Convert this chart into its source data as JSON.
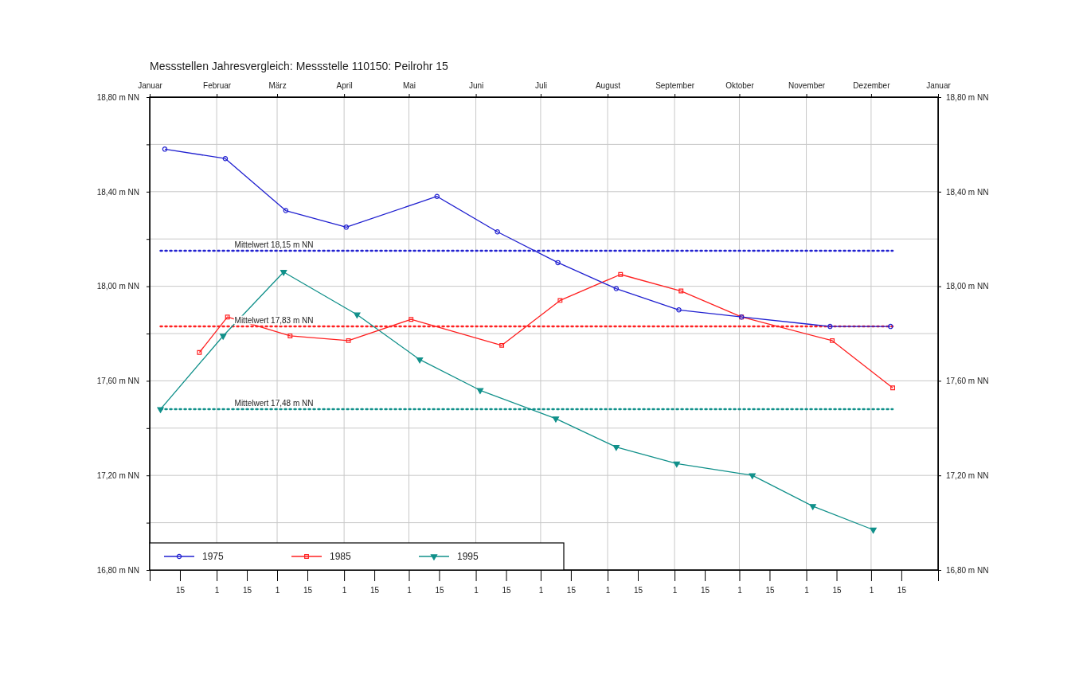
{
  "chart_data": {
    "type": "line",
    "title": "Messstellen Jahresvergleich:  Messstelle 110150: Peilrohr 15",
    "xlim": [
      "--01-01",
      "2002-01-01"
    ],
    "xticks": [
      {
        "value": "--01-01",
        "label": null
      },
      {
        "value": "--01-15",
        "label": "15"
      },
      {
        "value": "--02-01",
        "label": "1"
      },
      {
        "value": "--02-15",
        "label": "15"
      },
      {
        "value": "--03-01",
        "label": "1"
      },
      {
        "value": "--03-15",
        "label": "15"
      },
      {
        "value": "--04-01",
        "label": "1"
      },
      {
        "value": "--04-15",
        "label": "15"
      },
      {
        "value": "--05-01",
        "label": "1"
      },
      {
        "value": "--05-15",
        "label": "15"
      },
      {
        "value": "--06-01",
        "label": "1"
      },
      {
        "value": "--06-15",
        "label": "15"
      },
      {
        "value": "--07-01",
        "label": "1"
      },
      {
        "value": "--07-15",
        "label": "15"
      },
      {
        "value": "--08-01",
        "label": "1"
      },
      {
        "value": "--08-15",
        "label": "15"
      },
      {
        "value": "--09-01",
        "label": "1"
      },
      {
        "value": "--09-15",
        "label": "15"
      },
      {
        "value": "--10-01",
        "label": "1"
      },
      {
        "value": "--10-15",
        "label": "15"
      },
      {
        "value": "--11-01",
        "label": "1"
      },
      {
        "value": "--11-15",
        "label": "15"
      },
      {
        "value": "--12-01",
        "label": "1"
      },
      {
        "value": "--12-15",
        "label": "15"
      },
      {
        "value": "2002-01-01",
        "label": null
      }
    ],
    "x2lim": [
      "--01-01",
      "2002-01-01"
    ],
    "x2ticks": [
      {
        "value": "--01-01",
        "label": "Januar"
      },
      {
        "value": "--02-01",
        "label": "Februar"
      },
      {
        "value": "--03-01",
        "label": "März"
      },
      {
        "value": "--04-01",
        "label": "April"
      },
      {
        "value": "--05-01",
        "label": "Mai"
      },
      {
        "value": "--06-01",
        "label": "Juni"
      },
      {
        "value": "--07-01",
        "label": "Juli"
      },
      {
        "value": "--08-01",
        "label": "August"
      },
      {
        "value": "--09-01",
        "label": "September"
      },
      {
        "value": "--10-01",
        "label": "Oktober"
      },
      {
        "value": "--11-01",
        "label": "November"
      },
      {
        "value": "--12-01",
        "label": "Dezember"
      },
      {
        "value": "2002-01-01",
        "label": "Januar"
      }
    ],
    "ylim": [
      16.8,
      18.8
    ],
    "yticks": [
      {
        "value": 16.8,
        "label": "16,80 m NN"
      },
      {
        "value": 17.0,
        "label": null
      },
      {
        "value": 17.2,
        "label": "17,20 m NN"
      },
      {
        "value": 17.4,
        "label": null
      },
      {
        "value": 17.6,
        "label": "17,60 m NN"
      },
      {
        "value": 17.8,
        "label": null
      },
      {
        "value": 18.0,
        "label": "18,00 m NN"
      },
      {
        "value": 18.2,
        "label": null
      },
      {
        "value": 18.4,
        "label": "18,40 m NN"
      },
      {
        "value": 18.6,
        "label": null
      },
      {
        "value": 18.8,
        "label": "18,80 m NN"
      }
    ],
    "y2lim": [
      16.8,
      18.8
    ],
    "y2ticks": [
      {
        "value": 16.8,
        "label": "16,80 m NN"
      },
      {
        "value": 17.2,
        "label": "17,20 m NN"
      },
      {
        "value": 17.6,
        "label": "17,60 m NN"
      },
      {
        "value": 18.0,
        "label": "18,00 m NN"
      },
      {
        "value": 18.4,
        "label": "18,40 m NN"
      },
      {
        "value": 18.8,
        "label": "18,80 m NN"
      }
    ],
    "grid": true,
    "legend": "bottom left",
    "line_style": "solid",
    "series": [
      {
        "name": "1975",
        "color": "#2020d0",
        "marker": "circle",
        "x": [
          "--01-08",
          "--02-05",
          "--03-05",
          "--04-02",
          "--05-14",
          "--06-11",
          "--07-09",
          "--08-05",
          "--09-03",
          "--10-02",
          "--11-12",
          "--12-10"
        ],
        "values": [
          18.58,
          18.54,
          18.32,
          18.25,
          18.38,
          18.23,
          18.1,
          17.99,
          17.9,
          17.87,
          17.83,
          17.83
        ]
      },
      {
        "name": "1985",
        "color": "#ff2020",
        "marker": "square",
        "x": [
          "--01-24",
          "--02-06",
          "--03-07",
          "--04-03",
          "--05-02",
          "--06-13",
          "--07-10",
          "--08-07",
          "--09-04",
          "--10-02",
          "--11-13",
          "--12-11"
        ],
        "values": [
          17.72,
          17.87,
          17.79,
          17.77,
          17.86,
          17.75,
          17.94,
          18.05,
          17.98,
          17.87,
          17.77,
          17.57
        ]
      },
      {
        "name": "1995",
        "color": "#10908a",
        "marker": "triangle",
        "x": [
          "--01-06",
          "--02-04",
          "--03-04",
          "--04-07",
          "--05-06",
          "--06-03",
          "--07-08",
          "--08-05",
          "--09-02",
          "--10-07",
          "--11-04",
          "--12-02"
        ],
        "values": [
          17.48,
          17.79,
          18.06,
          17.88,
          17.69,
          17.56,
          17.44,
          17.32,
          17.25,
          17.2,
          17.07,
          16.97
        ]
      }
    ],
    "ref_lines": [
      {
        "axis": "y",
        "value": 18.15,
        "label": "Mittelwert 18,15 m NN",
        "color": "#2020d0",
        "line_style": "dotted"
      },
      {
        "axis": "y",
        "value": 17.83,
        "label": "Mittelwert 17,83 m NN",
        "color": "#ff2020",
        "line_style": "dotted"
      },
      {
        "axis": "y",
        "value": 17.48,
        "label": "Mittelwert 17,48 m NN",
        "color": "#10908a",
        "line_style": "dotted"
      }
    ]
  }
}
